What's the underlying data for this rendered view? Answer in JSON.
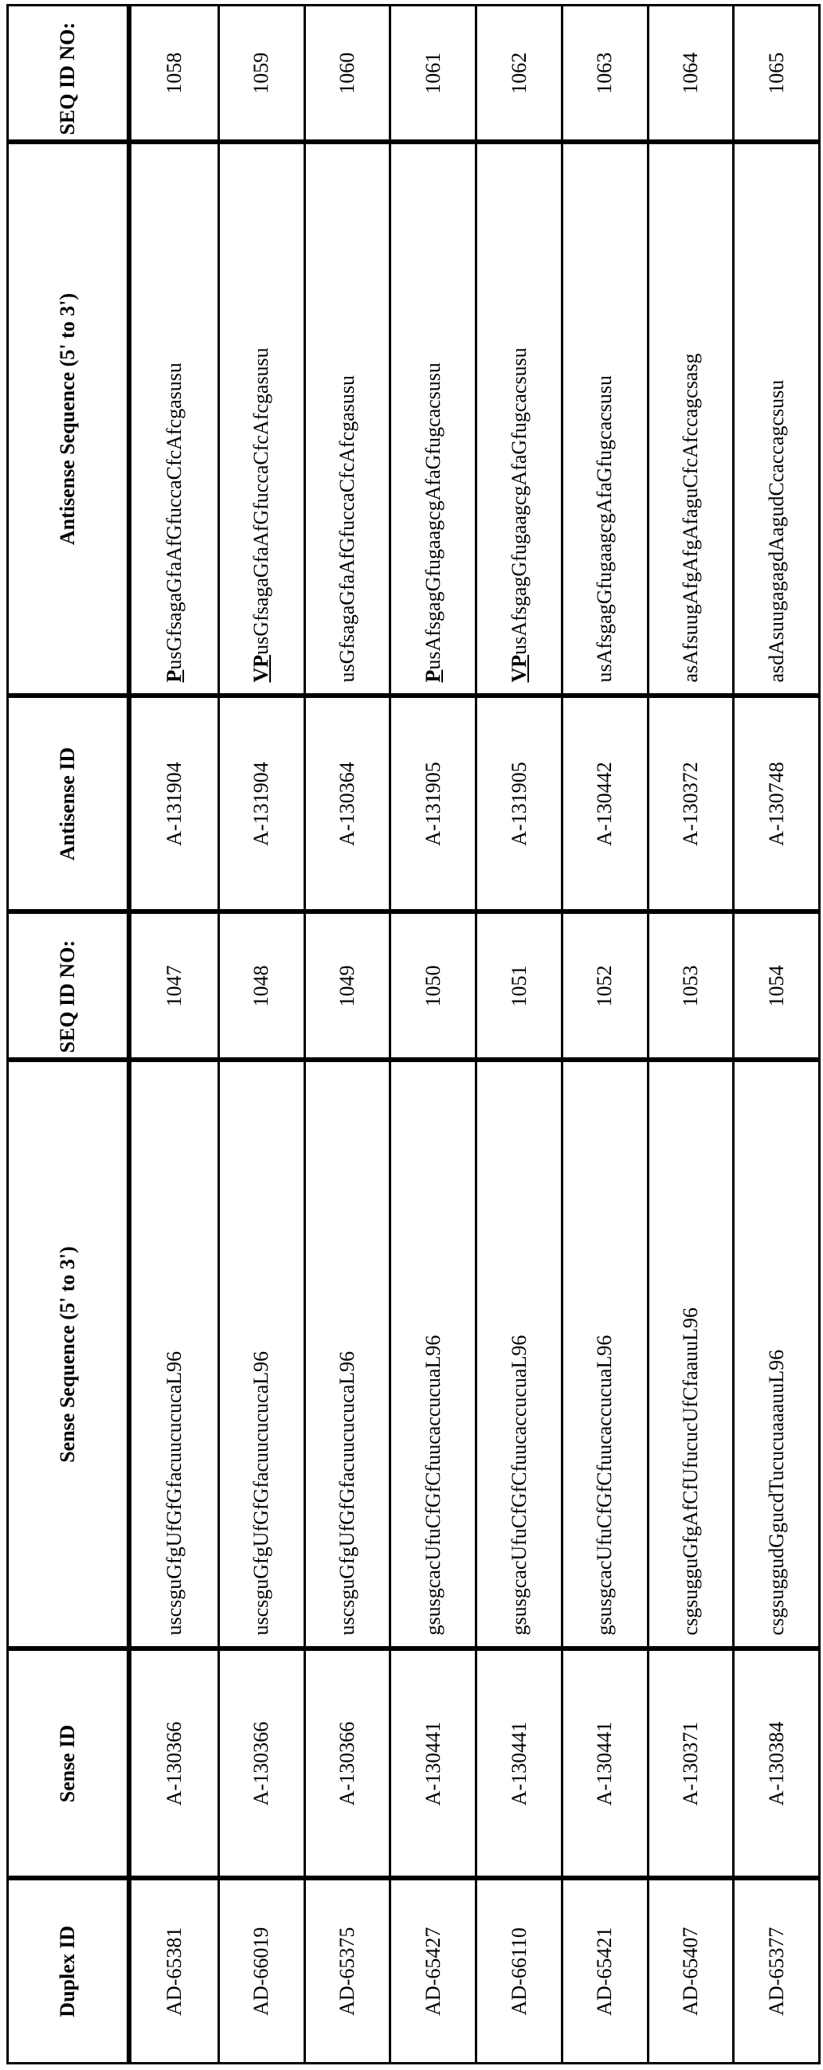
{
  "headers": {
    "duplex_id": "Duplex ID",
    "sense_id": "Sense ID",
    "sense_seq": "Sense Sequence (5' to 3')",
    "sense_seq_id": "SEQ ID NO:",
    "antisense_id": "Antisense ID",
    "antisense_seq": "Antisense Sequence (5' to 3')",
    "antisense_seq_id": "SEQ ID NO:"
  },
  "rows": [
    {
      "duplex_id": "AD-65381",
      "sense_id": "A-130366",
      "sense_seq": "uscsguGfgUfGfGfacuucucucaL96",
      "sense_seq_id": "1047",
      "antisense_id": "A-131904",
      "antisense_prefix": "P",
      "antisense_seq": "usGfsagaGfaAfGfuccaCfcAfcgasusu",
      "antisense_seq_id": "1058"
    },
    {
      "duplex_id": "AD-66019",
      "sense_id": "A-130366",
      "sense_seq": "uscsguGfgUfGfGfacuucucucaL96",
      "sense_seq_id": "1048",
      "antisense_id": "A-131904",
      "antisense_prefix": "VP",
      "antisense_seq": "usGfsagaGfaAfGfuccaCfcAfcgasusu",
      "antisense_seq_id": "1059"
    },
    {
      "duplex_id": "AD-65375",
      "sense_id": "A-130366",
      "sense_seq": "uscsguGfgUfGfGfacuucucucaL96",
      "sense_seq_id": "1049",
      "antisense_id": "A-130364",
      "antisense_prefix": "",
      "antisense_seq": "usGfsagaGfaAfGfuccaCfcAfcgasusu",
      "antisense_seq_id": "1060"
    },
    {
      "duplex_id": "AD-65427",
      "sense_id": "A-130441",
      "sense_seq": "gsusgcacUfuCfGfCfuucaccucuaL96",
      "sense_seq_id": "1050",
      "antisense_id": "A-131905",
      "antisense_prefix": "P",
      "antisense_seq": "usAfsgagGfugaagcgAfaGfugcacsusu",
      "antisense_seq_id": "1061"
    },
    {
      "duplex_id": "AD-66110",
      "sense_id": "A-130441",
      "sense_seq": "gsusgcacUfuCfGfCfuucaccucuaL96",
      "sense_seq_id": "1051",
      "antisense_id": "A-131905",
      "antisense_prefix": "VP",
      "antisense_seq": "usAfsgagGfugaagcgAfaGfugcacsusu",
      "antisense_seq_id": "1062"
    },
    {
      "duplex_id": "AD-65421",
      "sense_id": "A-130441",
      "sense_seq": "gsusgcacUfuCfGfCfuucaccucuaL96",
      "sense_seq_id": "1052",
      "antisense_id": "A-130442",
      "antisense_prefix": "",
      "antisense_seq": "usAfsgagGfugaagcgAfaGfugcacsusu",
      "antisense_seq_id": "1063"
    },
    {
      "duplex_id": "AD-65407",
      "sense_id": "A-130371",
      "sense_seq": "csgsugguGfgAfCfUfucucUfCfaauuL96",
      "sense_seq_id": "1053",
      "antisense_id": "A-130372",
      "antisense_prefix": "",
      "antisense_seq": "asAfsuugAfgAfgAfaguCfcAfccagcsasg",
      "antisense_seq_id": "1064"
    },
    {
      "duplex_id": "AD-65377",
      "sense_id": "A-130384",
      "sense_seq": "csgsuggudGgucdTucucuaaauuL96",
      "sense_seq_id": "1054",
      "antisense_id": "A-130748",
      "antisense_prefix": "",
      "antisense_seq": "asdAsuugagagdAagudCcaccagcsusu",
      "antisense_seq_id": "1065"
    }
  ]
}
